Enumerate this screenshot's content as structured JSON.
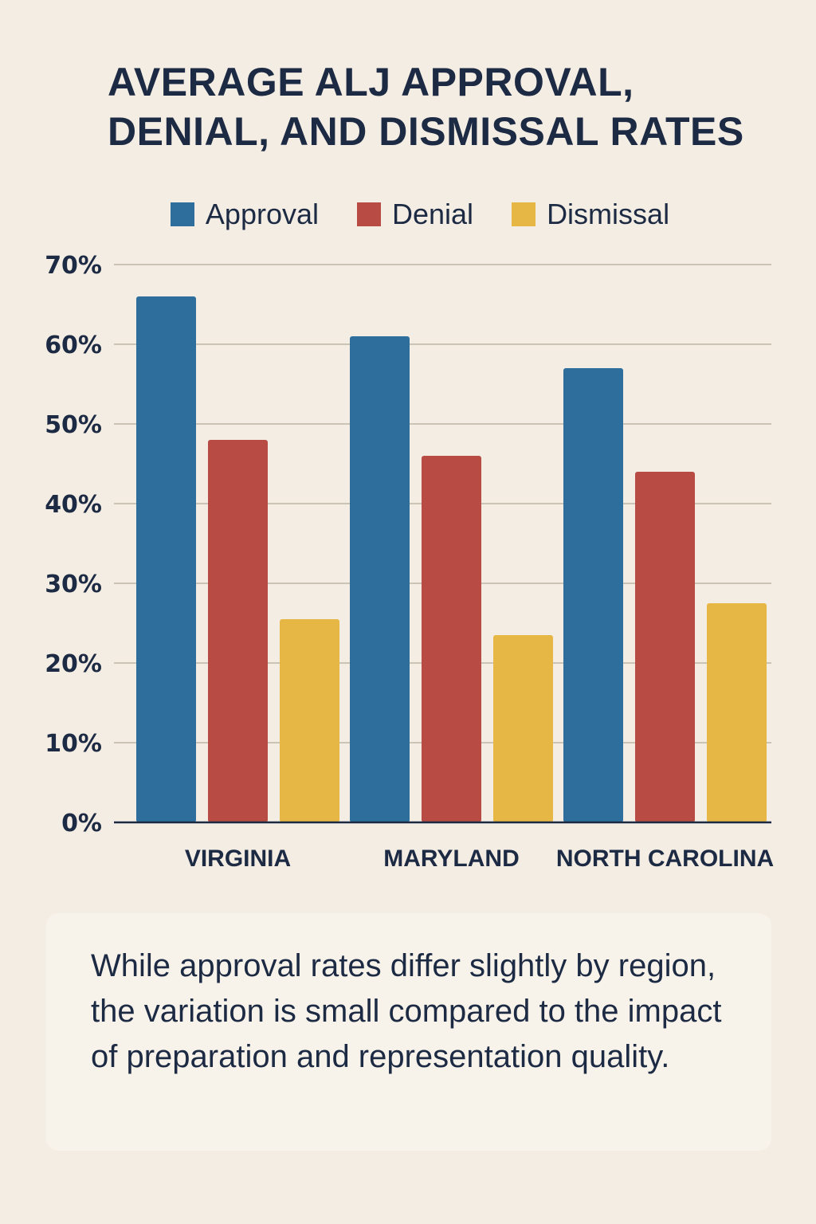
{
  "chart_data": {
    "type": "bar",
    "title": "AVERAGE ALJ APPROVAL, DENIAL, AND DISMISSAL RATES",
    "title_lines": [
      "AVERAGE ALJ APPROVAL,",
      "DENIAL, AND DISMISSAL RATES"
    ],
    "xlabel": "",
    "ylabel": "",
    "categories": [
      "VIRGINIA",
      "MARYLAND",
      "NORTH CAROLINA"
    ],
    "series": [
      {
        "name": "Approval",
        "color": "#2d6e9c",
        "values": [
          66,
          61,
          57
        ]
      },
      {
        "name": "Denial",
        "color": "#b84c44",
        "values": [
          48,
          46,
          44
        ]
      },
      {
        "name": "Dismissal",
        "color": "#e6b745",
        "values": [
          25.5,
          23.5,
          27.5
        ]
      }
    ],
    "ylim": [
      0,
      70
    ],
    "yticks": [
      0,
      10,
      20,
      30,
      40,
      50,
      60,
      70
    ],
    "ytick_labels": [
      "0%",
      "10%",
      "20%",
      "30%",
      "40%",
      "50%",
      "60%",
      "70%"
    ],
    "grid": true,
    "legend_position": "top-center"
  },
  "note": "While approval rates differ slightly by region, the variation is small compared to the impact of preparation and representation quality."
}
